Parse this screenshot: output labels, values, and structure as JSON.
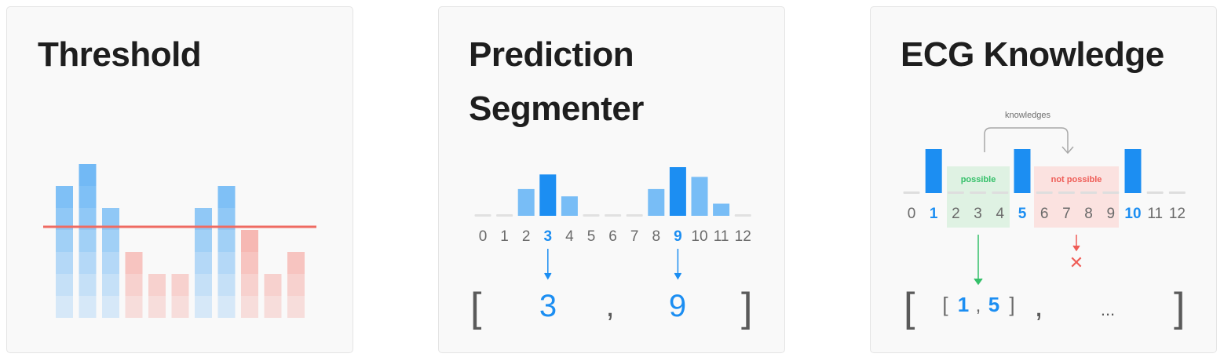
{
  "panels": [
    {
      "title": "Threshold"
    },
    {
      "title_lines": [
        "Prediction",
        "Segmenter"
      ]
    },
    {
      "title": "ECG Knowledge"
    }
  ],
  "colors": {
    "blue": "#1c8ef2",
    "light_blue": "#78bdf6",
    "red_line": "#ef6b62",
    "green_zone": "#dff2e3",
    "red_zone": "#fbe2e0",
    "green_text": "#35c06a",
    "red_text": "#ef5d57"
  },
  "threshold": {
    "bars_above": [
      6,
      7,
      5,
      3,
      2,
      2,
      5,
      6,
      4,
      2,
      3
    ],
    "threshold_level": "mid"
  },
  "segmenter": {
    "indices": [
      "0",
      "1",
      "2",
      "3",
      "4",
      "5",
      "6",
      "7",
      "8",
      "9",
      "10",
      "11",
      "12"
    ],
    "highlight": [
      3,
      9
    ],
    "bar_values": [
      0,
      0,
      0.55,
      0.85,
      0.4,
      0,
      0,
      0,
      0.55,
      1.0,
      0.8,
      0.25,
      0
    ],
    "result_open": "[",
    "result_values": [
      "3",
      "9"
    ],
    "result_sep": ",",
    "result_close": "]"
  },
  "ecg": {
    "indices": [
      "0",
      "1",
      "2",
      "3",
      "4",
      "5",
      "6",
      "7",
      "8",
      "9",
      "10",
      "11",
      "12"
    ],
    "highlight": [
      1,
      5,
      10
    ],
    "peaks": [
      1,
      5,
      10
    ],
    "arrow_label": "knowledges",
    "possible_label": "possible",
    "not_possible_label": "not possible",
    "result_open": "[",
    "inner_open": "[",
    "inner_values": [
      "1",
      "5"
    ],
    "inner_sep": ",",
    "inner_close": "]",
    "result_sep": ",",
    "ellipsis": "...",
    "result_close": "]",
    "cross": "✕"
  }
}
